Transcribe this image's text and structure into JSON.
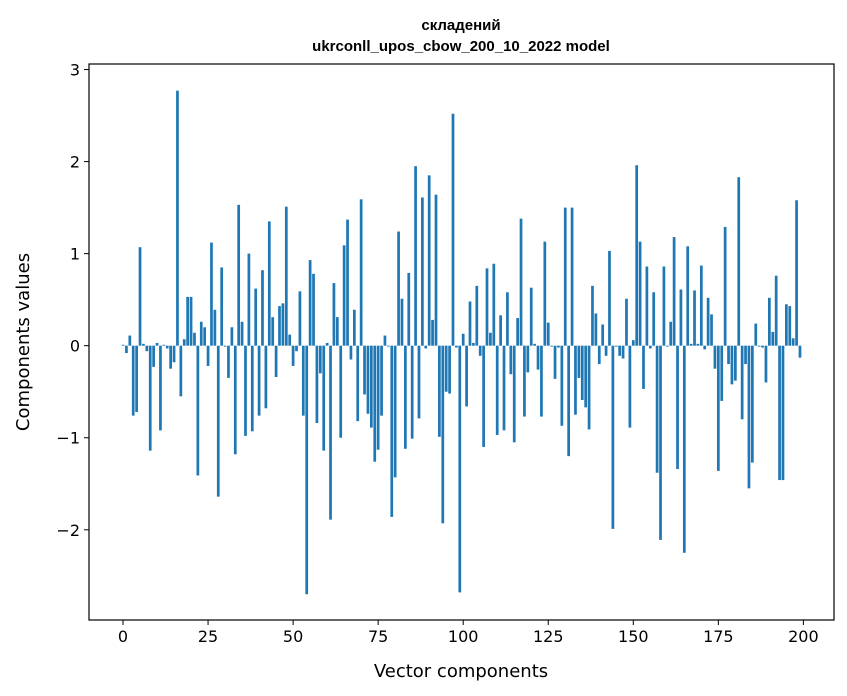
{
  "chart_data": {
    "type": "bar",
    "title": "складений",
    "subtitle": "ukrconll_upos_cbow_200_10_2022 model",
    "xlabel": "Vector components",
    "ylabel": "Components values",
    "xlim": [
      -10,
      209
    ],
    "ylim": [
      -2.98,
      3.06
    ],
    "xticks": [
      0,
      25,
      50,
      75,
      100,
      125,
      150,
      175,
      200
    ],
    "yticks": [
      -2,
      -1,
      0,
      1,
      2,
      3
    ],
    "xtick_labels": [
      "0",
      "25",
      "50",
      "75",
      "100",
      "125",
      "150",
      "175",
      "200"
    ],
    "ytick_labels": [
      "−2",
      "−1",
      "0",
      "1",
      "2",
      "3"
    ],
    "grid": false,
    "bar_color": "#1f77b4",
    "x": [
      0,
      1,
      2,
      3,
      4,
      5,
      6,
      7,
      8,
      9,
      10,
      11,
      12,
      13,
      14,
      15,
      16,
      17,
      18,
      19,
      20,
      21,
      22,
      23,
      24,
      25,
      26,
      27,
      28,
      29,
      30,
      31,
      32,
      33,
      34,
      35,
      36,
      37,
      38,
      39,
      40,
      41,
      42,
      43,
      44,
      45,
      46,
      47,
      48,
      49,
      50,
      51,
      52,
      53,
      54,
      55,
      56,
      57,
      58,
      59,
      60,
      61,
      62,
      63,
      64,
      65,
      66,
      67,
      68,
      69,
      70,
      71,
      72,
      73,
      74,
      75,
      76,
      77,
      78,
      79,
      80,
      81,
      82,
      83,
      84,
      85,
      86,
      87,
      88,
      89,
      90,
      91,
      92,
      93,
      94,
      95,
      96,
      97,
      98,
      99,
      100,
      101,
      102,
      103,
      104,
      105,
      106,
      107,
      108,
      109,
      110,
      111,
      112,
      113,
      114,
      115,
      116,
      117,
      118,
      119,
      120,
      121,
      122,
      123,
      124,
      125,
      126,
      127,
      128,
      129,
      130,
      131,
      132,
      133,
      134,
      135,
      136,
      137,
      138,
      139,
      140,
      141,
      142,
      143,
      144,
      145,
      146,
      147,
      148,
      149,
      150,
      151,
      152,
      153,
      154,
      155,
      156,
      157,
      158,
      159,
      160,
      161,
      162,
      163,
      164,
      165,
      166,
      167,
      168,
      169,
      170,
      171,
      172,
      173,
      174,
      175,
      176,
      177,
      178,
      179,
      180,
      181,
      182,
      183,
      184,
      185,
      186,
      187,
      188,
      189,
      190,
      191,
      192,
      193,
      194,
      195,
      196,
      197,
      198,
      199
    ],
    "values": [
      0.01,
      -0.08,
      0.11,
      -0.76,
      -0.72,
      1.07,
      0.02,
      -0.06,
      -1.14,
      -0.23,
      0.03,
      -0.92,
      0.01,
      -0.03,
      -0.25,
      -0.18,
      2.77,
      -0.55,
      0.07,
      0.53,
      0.53,
      0.14,
      -1.41,
      0.26,
      0.2,
      -0.22,
      1.12,
      0.39,
      -1.64,
      0.85,
      -0.01,
      -0.35,
      0.2,
      -1.18,
      1.53,
      0.26,
      -0.98,
      1.0,
      -0.93,
      0.62,
      -0.76,
      0.82,
      -0.68,
      1.35,
      0.31,
      -0.34,
      0.43,
      0.46,
      1.51,
      0.12,
      -0.22,
      -0.06,
      0.59,
      -0.76,
      -2.7,
      0.93,
      0.78,
      -0.84,
      -0.3,
      -1.14,
      0.03,
      -1.89,
      0.68,
      0.31,
      -1.0,
      1.09,
      1.37,
      -0.15,
      0.39,
      -0.82,
      1.59,
      -0.53,
      -0.74,
      -0.89,
      -1.26,
      -1.13,
      -0.76,
      0.11,
      -0.01,
      -1.86,
      -1.43,
      1.24,
      0.51,
      -1.12,
      0.79,
      -1.01,
      1.95,
      -0.79,
      1.61,
      -0.03,
      1.85,
      0.28,
      1.64,
      -0.99,
      -1.93,
      -0.5,
      -0.52,
      2.52,
      -0.02,
      -2.68,
      0.13,
      -0.66,
      0.48,
      0.03,
      0.65,
      -0.11,
      -1.1,
      0.84,
      0.14,
      0.89,
      -0.97,
      0.33,
      -0.92,
      0.58,
      -0.31,
      -1.05,
      0.3,
      1.38,
      -0.77,
      -0.29,
      0.63,
      0.02,
      -0.26,
      -0.77,
      1.13,
      0.25,
      -0.01,
      -0.36,
      -0.02,
      -0.87,
      1.5,
      -1.2,
      1.5,
      -0.75,
      -0.35,
      -0.59,
      -0.67,
      -0.91,
      0.65,
      0.35,
      -0.2,
      0.23,
      -0.11,
      1.03,
      -1.99,
      -0.01,
      -0.11,
      -0.14,
      0.51,
      -0.89,
      0.06,
      1.96,
      1.13,
      -0.47,
      0.86,
      -0.03,
      0.58,
      -1.38,
      -2.11,
      0.86,
      -0.01,
      0.26,
      1.18,
      -1.34,
      0.61,
      -2.25,
      1.08,
      0.02,
      0.6,
      0.02,
      0.87,
      -0.04,
      0.52,
      0.34,
      -0.25,
      -1.36,
      -0.6,
      1.29,
      -0.2,
      -0.42,
      -0.38,
      1.83,
      -0.8,
      -0.2,
      -1.55,
      -1.27,
      0.24,
      -0.01,
      -0.02,
      -0.4,
      0.52,
      0.15,
      0.76,
      -1.46,
      -1.46,
      0.45,
      0.43,
      0.08,
      1.58,
      -0.13
    ]
  }
}
